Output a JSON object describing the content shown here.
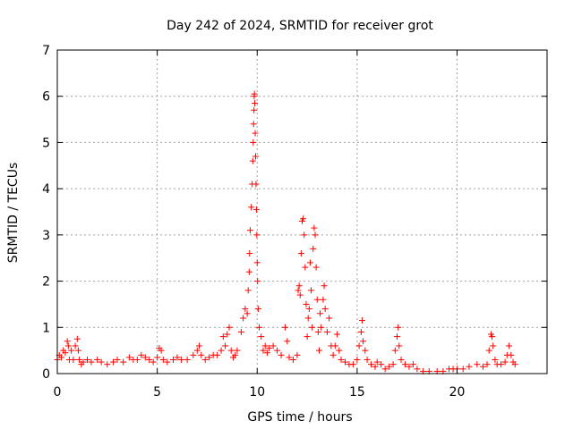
{
  "chart_data": {
    "type": "scatter",
    "title": "Day 242 of 2024, SRMTID for receiver grot",
    "xlabel": "GPS time / hours",
    "ylabel": "SRMTID / TECUs",
    "xlim": [
      0,
      24.5
    ],
    "ylim": [
      0,
      7
    ],
    "xticks": [
      0,
      5,
      10,
      15,
      20
    ],
    "yticks": [
      0,
      1,
      2,
      3,
      4,
      5,
      6,
      7
    ],
    "xtick_labels": [
      "0",
      "5",
      "10",
      "15",
      "20"
    ],
    "ytick_labels": [
      "0",
      "1",
      "2",
      "3",
      "4",
      "5",
      "6",
      "7"
    ],
    "grid": true,
    "marker": "+",
    "color": "#ff0000",
    "series": [
      {
        "name": "SRMTID",
        "points": [
          [
            0.0,
            0.3
          ],
          [
            0.1,
            0.4
          ],
          [
            0.2,
            0.35
          ],
          [
            0.3,
            0.5
          ],
          [
            0.4,
            0.45
          ],
          [
            0.5,
            0.7
          ],
          [
            0.55,
            0.6
          ],
          [
            0.6,
            0.3
          ],
          [
            0.7,
            0.5
          ],
          [
            0.8,
            0.3
          ],
          [
            0.9,
            0.6
          ],
          [
            1.0,
            0.75
          ],
          [
            1.05,
            0.5
          ],
          [
            1.1,
            0.3
          ],
          [
            1.2,
            0.2
          ],
          [
            1.3,
            0.25
          ],
          [
            1.5,
            0.3
          ],
          [
            1.7,
            0.25
          ],
          [
            2.0,
            0.3
          ],
          [
            2.2,
            0.25
          ],
          [
            2.5,
            0.2
          ],
          [
            2.8,
            0.25
          ],
          [
            3.0,
            0.3
          ],
          [
            3.3,
            0.25
          ],
          [
            3.6,
            0.35
          ],
          [
            3.8,
            0.3
          ],
          [
            4.0,
            0.3
          ],
          [
            4.2,
            0.4
          ],
          [
            4.4,
            0.35
          ],
          [
            4.6,
            0.3
          ],
          [
            4.8,
            0.25
          ],
          [
            5.0,
            0.35
          ],
          [
            5.1,
            0.55
          ],
          [
            5.2,
            0.5
          ],
          [
            5.3,
            0.3
          ],
          [
            5.5,
            0.25
          ],
          [
            5.8,
            0.3
          ],
          [
            6.0,
            0.35
          ],
          [
            6.2,
            0.3
          ],
          [
            6.5,
            0.3
          ],
          [
            6.8,
            0.4
          ],
          [
            7.0,
            0.5
          ],
          [
            7.1,
            0.6
          ],
          [
            7.2,
            0.4
          ],
          [
            7.4,
            0.3
          ],
          [
            7.6,
            0.35
          ],
          [
            7.8,
            0.4
          ],
          [
            8.0,
            0.4
          ],
          [
            8.2,
            0.5
          ],
          [
            8.3,
            0.8
          ],
          [
            8.4,
            0.6
          ],
          [
            8.5,
            0.85
          ],
          [
            8.6,
            1.0
          ],
          [
            8.7,
            0.5
          ],
          [
            8.8,
            0.35
          ],
          [
            8.9,
            0.4
          ],
          [
            9.0,
            0.5
          ],
          [
            9.2,
            0.9
          ],
          [
            9.3,
            1.2
          ],
          [
            9.4,
            1.4
          ],
          [
            9.5,
            1.3
          ],
          [
            9.55,
            1.8
          ],
          [
            9.6,
            2.2
          ],
          [
            9.62,
            2.6
          ],
          [
            9.65,
            3.1
          ],
          [
            9.7,
            3.6
          ],
          [
            9.75,
            4.1
          ],
          [
            9.78,
            4.6
          ],
          [
            9.8,
            5.0
          ],
          [
            9.82,
            5.4
          ],
          [
            9.84,
            5.7
          ],
          [
            9.85,
            6.0
          ],
          [
            9.86,
            6.05
          ],
          [
            9.88,
            5.85
          ],
          [
            9.9,
            5.2
          ],
          [
            9.92,
            4.7
          ],
          [
            9.94,
            4.1
          ],
          [
            9.96,
            3.55
          ],
          [
            9.98,
            3.0
          ],
          [
            10.0,
            2.4
          ],
          [
            10.02,
            2.0
          ],
          [
            10.05,
            1.4
          ],
          [
            10.1,
            1.0
          ],
          [
            10.2,
            0.8
          ],
          [
            10.3,
            0.5
          ],
          [
            10.4,
            0.6
          ],
          [
            10.5,
            0.45
          ],
          [
            10.6,
            0.55
          ],
          [
            10.8,
            0.6
          ],
          [
            11.0,
            0.5
          ],
          [
            11.2,
            0.4
          ],
          [
            11.4,
            1.0
          ],
          [
            11.5,
            0.7
          ],
          [
            11.6,
            0.35
          ],
          [
            11.8,
            0.3
          ],
          [
            12.0,
            0.4
          ],
          [
            12.05,
            1.8
          ],
          [
            12.1,
            1.9
          ],
          [
            12.15,
            1.7
          ],
          [
            12.2,
            2.6
          ],
          [
            12.25,
            3.3
          ],
          [
            12.3,
            3.35
          ],
          [
            12.35,
            3.0
          ],
          [
            12.4,
            2.3
          ],
          [
            12.45,
            1.5
          ],
          [
            12.5,
            0.8
          ],
          [
            12.55,
            1.2
          ],
          [
            12.6,
            1.4
          ],
          [
            12.65,
            2.4
          ],
          [
            12.7,
            1.8
          ],
          [
            12.75,
            1.0
          ],
          [
            12.8,
            2.7
          ],
          [
            12.85,
            3.15
          ],
          [
            12.9,
            3.0
          ],
          [
            12.95,
            2.3
          ],
          [
            13.0,
            1.6
          ],
          [
            13.05,
            0.9
          ],
          [
            13.1,
            0.5
          ],
          [
            13.15,
            1.3
          ],
          [
            13.2,
            1.0
          ],
          [
            13.3,
            1.6
          ],
          [
            13.35,
            1.9
          ],
          [
            13.4,
            1.4
          ],
          [
            13.5,
            0.9
          ],
          [
            13.6,
            1.2
          ],
          [
            13.7,
            0.6
          ],
          [
            13.8,
            0.4
          ],
          [
            13.9,
            0.6
          ],
          [
            14.0,
            0.85
          ],
          [
            14.1,
            0.5
          ],
          [
            14.2,
            0.3
          ],
          [
            14.4,
            0.25
          ],
          [
            14.6,
            0.2
          ],
          [
            14.8,
            0.2
          ],
          [
            15.0,
            0.3
          ],
          [
            15.1,
            0.6
          ],
          [
            15.2,
            0.9
          ],
          [
            15.25,
            1.15
          ],
          [
            15.3,
            0.7
          ],
          [
            15.4,
            0.5
          ],
          [
            15.5,
            0.3
          ],
          [
            15.7,
            0.2
          ],
          [
            15.9,
            0.15
          ],
          [
            16.0,
            0.25
          ],
          [
            16.2,
            0.2
          ],
          [
            16.4,
            0.1
          ],
          [
            16.6,
            0.15
          ],
          [
            16.8,
            0.2
          ],
          [
            16.9,
            0.5
          ],
          [
            17.0,
            0.8
          ],
          [
            17.05,
            1.0
          ],
          [
            17.1,
            0.6
          ],
          [
            17.2,
            0.3
          ],
          [
            17.4,
            0.2
          ],
          [
            17.6,
            0.15
          ],
          [
            17.8,
            0.2
          ],
          [
            18.0,
            0.1
          ],
          [
            18.3,
            0.05
          ],
          [
            18.6,
            0.05
          ],
          [
            19.0,
            0.05
          ],
          [
            19.3,
            0.05
          ],
          [
            19.6,
            0.1
          ],
          [
            19.8,
            0.1
          ],
          [
            20.0,
            0.1
          ],
          [
            20.3,
            0.1
          ],
          [
            20.6,
            0.15
          ],
          [
            21.0,
            0.2
          ],
          [
            21.3,
            0.15
          ],
          [
            21.5,
            0.2
          ],
          [
            21.6,
            0.5
          ],
          [
            21.7,
            0.85
          ],
          [
            21.75,
            0.8
          ],
          [
            21.8,
            0.6
          ],
          [
            21.9,
            0.3
          ],
          [
            22.0,
            0.2
          ],
          [
            22.2,
            0.2
          ],
          [
            22.4,
            0.25
          ],
          [
            22.5,
            0.4
          ],
          [
            22.6,
            0.6
          ],
          [
            22.7,
            0.4
          ],
          [
            22.8,
            0.25
          ],
          [
            22.9,
            0.2
          ]
        ]
      }
    ]
  }
}
